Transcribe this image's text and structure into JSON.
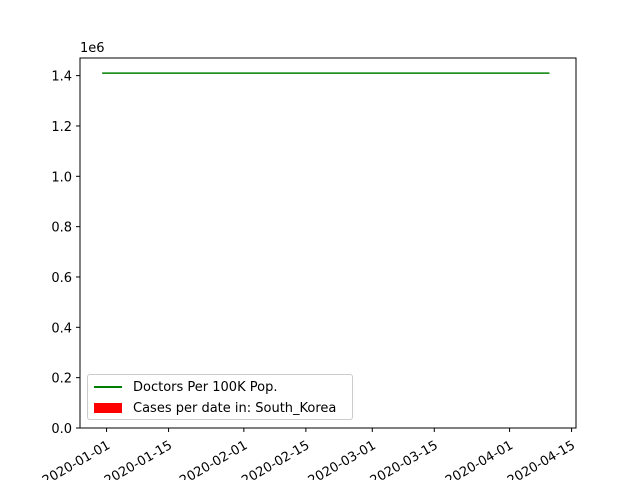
{
  "chart_data": {
    "type": "line",
    "scale_label": "1e6",
    "x_ticks": [
      "2020-01-01",
      "2020-01-15",
      "2020-02-01",
      "2020-02-15",
      "2020-03-01",
      "2020-03-15",
      "2020-04-01",
      "2020-04-15"
    ],
    "y_ticks": [
      "0.0",
      "0.2",
      "0.4",
      "0.6",
      "0.8",
      "1.0",
      "1.2",
      "1.4"
    ],
    "xlim": [
      "2019-12-26",
      "2020-04-16"
    ],
    "ylim": [
      0,
      1.47
    ],
    "series": [
      {
        "name": "Doctors Per 100K Pop.",
        "kind": "line",
        "color": "#008000",
        "x": [
          "2019-12-31",
          "2020-04-10"
        ],
        "y": [
          1.41,
          1.41
        ]
      },
      {
        "name": "Cases per date in: South_Korea",
        "kind": "bar",
        "color": "#ff0000",
        "x": [],
        "y": []
      }
    ],
    "legend_position": "lower-left",
    "grid": false
  }
}
